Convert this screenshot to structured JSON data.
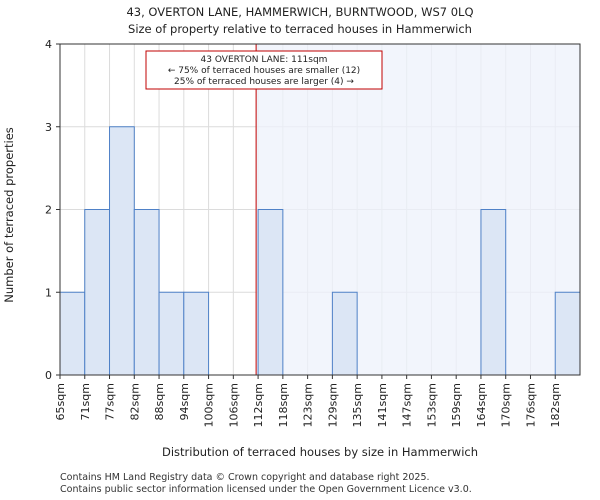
{
  "chart_data": {
    "type": "bar",
    "title_line1": "43, OVERTON LANE, HAMMERWICH, BURNTWOOD, WS7 0LQ",
    "title_line2": "Size of property relative to terraced houses in Hammerwich",
    "xlabel": "Distribution of terraced houses by size in Hammerwich",
    "ylabel": "Number of terraced properties",
    "categories": [
      "65sqm",
      "71sqm",
      "77sqm",
      "82sqm",
      "88sqm",
      "94sqm",
      "100sqm",
      "106sqm",
      "112sqm",
      "118sqm",
      "123sqm",
      "129sqm",
      "135sqm",
      "141sqm",
      "147sqm",
      "153sqm",
      "159sqm",
      "164sqm",
      "170sqm",
      "176sqm",
      "182sqm"
    ],
    "values": [
      1,
      2,
      3,
      2,
      1,
      1,
      0,
      0,
      2,
      0,
      0,
      1,
      0,
      0,
      0,
      0,
      0,
      2,
      0,
      0,
      1
    ],
    "ylim": [
      0,
      4
    ],
    "yticks": [
      "0",
      "1",
      "2",
      "3",
      "4"
    ],
    "grid": true,
    "marker": {
      "value_index": 7.92,
      "line1": "43 OVERTON LANE: 111sqm",
      "line2": "← 75% of terraced houses are smaller (12)",
      "line3": "25% of terraced houses are larger (4) →"
    },
    "colors": {
      "bar_fill": "#dce6f5",
      "bar_stroke": "#4f81c7",
      "highlight_region": "#eef2fb",
      "marker_line": "#c00000",
      "grid": "#dcdcdc"
    }
  },
  "footer": {
    "line1": "Contains HM Land Registry data © Crown copyright and database right 2025.",
    "line2": "Contains public sector information licensed under the Open Government Licence v3.0."
  }
}
